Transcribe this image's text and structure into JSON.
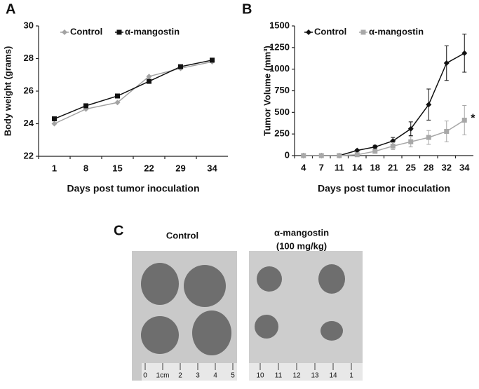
{
  "chart_data": [
    {
      "type": "line",
      "panel_label": "A",
      "categories": [
        "1",
        "8",
        "15",
        "22",
        "29",
        "34"
      ],
      "x_label": "Days post tumor inoculation",
      "y_label": "Body weight (grams)",
      "ylim": [
        22,
        30
      ],
      "yticks": [
        22,
        24,
        26,
        28,
        30
      ],
      "legend": "top-left",
      "series": [
        {
          "name": "Control",
          "color": "#a3a3a3",
          "marker": "diamond",
          "values": [
            24.0,
            24.9,
            25.3,
            26.9,
            27.4,
            27.8
          ]
        },
        {
          "name": "α-mangostin",
          "color": "#111111",
          "marker": "square",
          "values": [
            24.3,
            25.1,
            25.7,
            26.6,
            27.5,
            27.9
          ]
        }
      ]
    },
    {
      "type": "line",
      "panel_label": "B",
      "categories": [
        "4",
        "7",
        "11",
        "14",
        "18",
        "21",
        "25",
        "28",
        "32",
        "34"
      ],
      "x_label": "Days post tumor inoculation",
      "y_label": "Tumor Volume (mm³)",
      "ylim": [
        0,
        1500
      ],
      "yticks": [
        0,
        250,
        500,
        750,
        1000,
        1250,
        1500
      ],
      "legend": "top-left",
      "annotation": "*",
      "series": [
        {
          "name": "Control",
          "color": "#111111",
          "marker": "diamond",
          "values": [
            0,
            0,
            0,
            60,
            100,
            170,
            310,
            590,
            1070,
            1185
          ],
          "errors": [
            0,
            0,
            0,
            10,
            20,
            40,
            80,
            180,
            200,
            220
          ]
        },
        {
          "name": "α-mangostin",
          "color": "#a8a8a8",
          "marker": "square",
          "values": [
            0,
            0,
            0,
            10,
            50,
            110,
            160,
            210,
            280,
            410
          ],
          "errors": [
            0,
            0,
            0,
            5,
            20,
            40,
            60,
            80,
            120,
            170
          ]
        }
      ]
    }
  ],
  "photo": {
    "panel_label": "C",
    "left_title": "Control",
    "right_title": [
      "α-mangostin",
      "(100 mg/kg)"
    ],
    "left_ruler": [
      "0",
      "1cm",
      "2",
      "3",
      "4",
      "5"
    ],
    "right_ruler": [
      "10",
      "11",
      "12",
      "13",
      "14",
      "1"
    ]
  }
}
